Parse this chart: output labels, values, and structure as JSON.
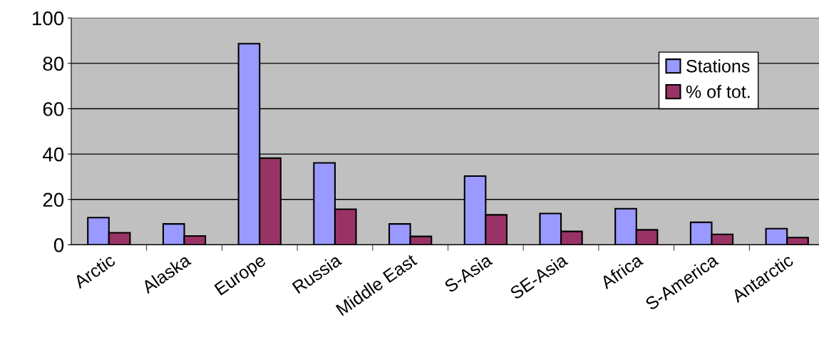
{
  "chart_data": {
    "type": "bar",
    "categories": [
      "Arctic",
      "Alaska",
      "Europe",
      "Russia",
      "Middle East",
      "S-Asia",
      "SE-Asia",
      "Africa",
      "S-America",
      "Antarctic"
    ],
    "series": [
      {
        "name": "Stations",
        "color": "#9999ff",
        "values": [
          12,
          9.2,
          88.7,
          36.1,
          9.2,
          30.3,
          13.8,
          15.9,
          9.9,
          7.1
        ]
      },
      {
        "name": "% of tot.",
        "color": "#993366",
        "values": [
          5.3,
          3.9,
          38.2,
          15.7,
          3.7,
          13.2,
          5.9,
          6.6,
          4.6,
          3.2
        ]
      }
    ],
    "ylim": [
      0,
      100
    ],
    "yticks": [
      0,
      20,
      40,
      60,
      80,
      100
    ],
    "grid": "y",
    "legend": "top right"
  }
}
